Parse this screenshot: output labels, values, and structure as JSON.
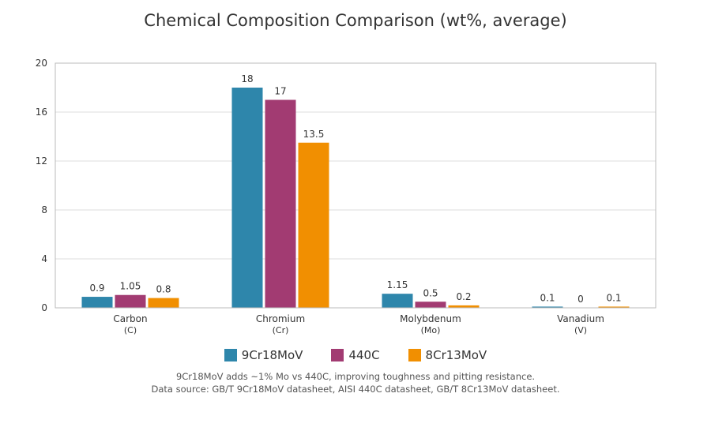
{
  "chart_data": {
    "type": "bar",
    "title": "Chemical Composition Comparison (wt%, average)",
    "categories": [
      {
        "line1": "Carbon",
        "line2": "(C)"
      },
      {
        "line1": "Chromium",
        "line2": "(Cr)"
      },
      {
        "line1": "Molybdenum",
        "line2": "(Mo)"
      },
      {
        "line1": "Vanadium",
        "line2": "(V)"
      }
    ],
    "series": [
      {
        "name": "9Cr18MoV",
        "color": "#2E86AB",
        "values": [
          0.9,
          18,
          1.15,
          0.1
        ],
        "labels": [
          "0.9",
          "18",
          "1.15",
          "0.1"
        ]
      },
      {
        "name": "440C",
        "color": "#A23B72",
        "values": [
          1.05,
          17,
          0.5,
          0
        ],
        "labels": [
          "1.05",
          "17",
          "0.5",
          "0"
        ]
      },
      {
        "name": "8Cr13MoV",
        "color": "#F18F01",
        "values": [
          0.8,
          13.5,
          0.2,
          0.1
        ],
        "labels": [
          "0.8",
          "13.5",
          "0.2",
          "0.1"
        ]
      }
    ],
    "ylim": [
      0,
      20
    ],
    "yticks": [
      "0",
      "4",
      "8",
      "12",
      "16",
      "20"
    ],
    "grid": true,
    "legend_position": "bottom"
  },
  "notes": [
    "9Cr18MoV adds ~1% Mo vs 440C, improving toughness and pitting resistance.",
    "Data source: GB/T 9Cr18MoV datasheet, AISI 440C datasheet, GB/T 8Cr13MoV datasheet."
  ]
}
